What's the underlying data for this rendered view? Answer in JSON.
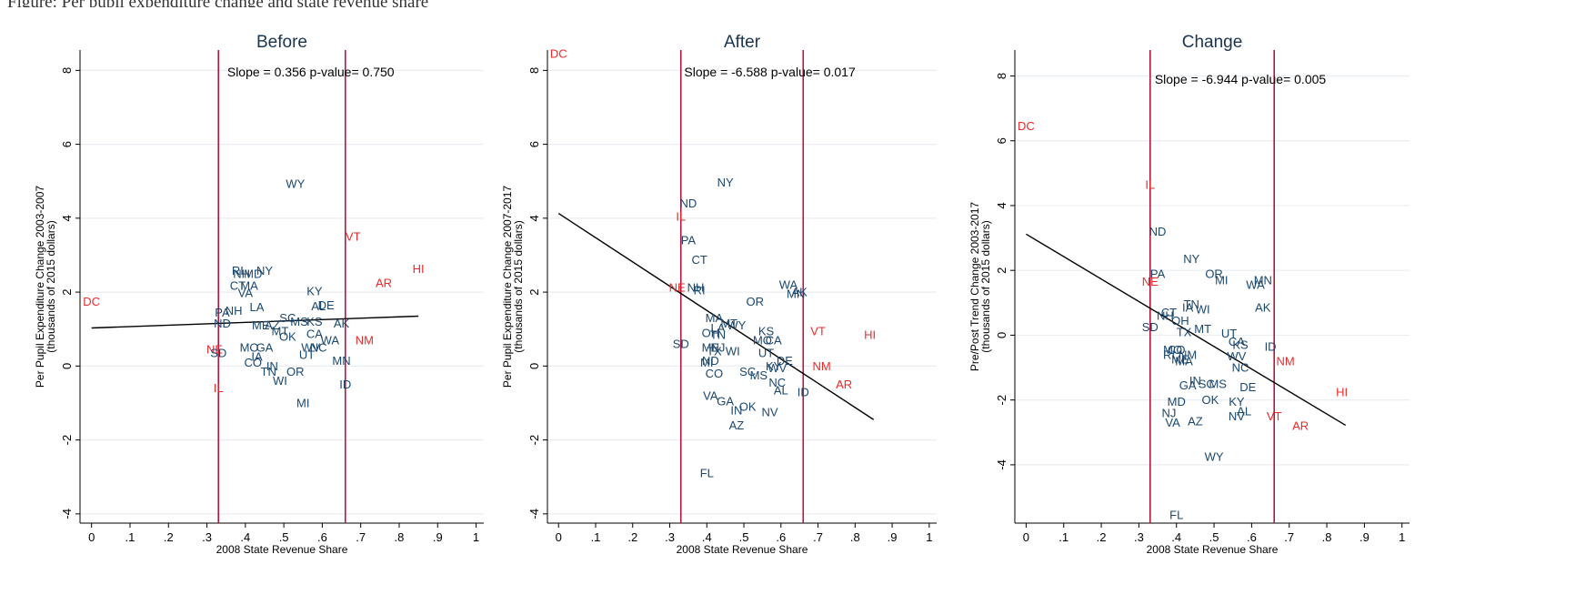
{
  "caption_fragment": "Figure: Per pupil expenditure change and state revenue share",
  "colors": {
    "background": "#ffffff",
    "plot_bg": "#ffffff",
    "grid": "#e9eef2",
    "state_label": "#1a476f",
    "highlight_label": "#ea2a2a",
    "threshold_line": "#b2183f",
    "fit_line": "#000000"
  },
  "chart_data": [
    {
      "type": "scatter",
      "title": "Before",
      "xlabel": "2008 State Revenue Share",
      "ylabel": [
        "Per Pupil Expenditure Change 2003-2007",
        "(thousands of 2015 dollars)"
      ],
      "xlim": [
        -0.03,
        1.02
      ],
      "ylim": [
        -4.25,
        8.55
      ],
      "xticks": [
        0,
        0.1,
        0.2,
        0.3,
        0.4,
        0.5,
        0.6,
        0.7,
        0.8,
        0.9,
        1
      ],
      "xtick_labels": [
        "0",
        ".1",
        ".2",
        ".3",
        ".4",
        ".5",
        ".6",
        ".7",
        ".8",
        ".9",
        "1"
      ],
      "yticks": [
        -4,
        -2,
        0,
        2,
        4,
        6,
        8
      ],
      "ytick_labels": [
        "-4",
        "-2",
        "0",
        "2",
        "4",
        "6",
        "8"
      ],
      "grid": true,
      "vlines": [
        0.33,
        0.66
      ],
      "fit_line": {
        "x": [
          0,
          0.85
        ],
        "y": [
          1.03,
          1.35
        ]
      },
      "annotation": {
        "text": "Slope = 0.356  p-value= 0.750",
        "x": 0.57,
        "y": 7.96
      },
      "points": [
        {
          "label": "DC",
          "x": 0.0,
          "y": 1.75,
          "highlight": true
        },
        {
          "label": "WY",
          "x": 0.53,
          "y": 4.93
        },
        {
          "label": "VT",
          "x": 0.68,
          "y": 3.5,
          "highlight": true
        },
        {
          "label": "HI",
          "x": 0.85,
          "y": 2.63,
          "highlight": true
        },
        {
          "label": "AR",
          "x": 0.76,
          "y": 2.25,
          "highlight": true
        },
        {
          "label": "RI",
          "x": 0.38,
          "y": 2.58
        },
        {
          "label": "NY",
          "x": 0.45,
          "y": 2.58
        },
        {
          "label": "NH",
          "x": 0.39,
          "y": 2.5
        },
        {
          "label": "MD",
          "x": 0.42,
          "y": 2.5
        },
        {
          "label": "CT",
          "x": 0.38,
          "y": 2.18
        },
        {
          "label": "MA",
          "x": 0.41,
          "y": 2.18
        },
        {
          "label": "VA",
          "x": 0.4,
          "y": 1.98
        },
        {
          "label": "KY",
          "x": 0.58,
          "y": 2.03
        },
        {
          "label": "LA",
          "x": 0.43,
          "y": 1.6
        },
        {
          "label": "PA",
          "x": 0.34,
          "y": 1.45
        },
        {
          "label": "NH",
          "x": 0.37,
          "y": 1.5
        },
        {
          "label": "ND",
          "x": 0.34,
          "y": 1.15
        },
        {
          "label": "SC",
          "x": 0.51,
          "y": 1.3
        },
        {
          "label": "AL",
          "x": 0.59,
          "y": 1.62
        },
        {
          "label": "DE",
          "x": 0.61,
          "y": 1.65
        },
        {
          "label": "ME",
          "x": 0.44,
          "y": 1.1
        },
        {
          "label": "AZ",
          "x": 0.47,
          "y": 1.1
        },
        {
          "label": "MS",
          "x": 0.54,
          "y": 1.2
        },
        {
          "label": "KS",
          "x": 0.58,
          "y": 1.2
        },
        {
          "label": "AK",
          "x": 0.65,
          "y": 1.15
        },
        {
          "label": "MT",
          "x": 0.49,
          "y": 0.95
        },
        {
          "label": "CA",
          "x": 0.58,
          "y": 0.87
        },
        {
          "label": "WA",
          "x": 0.62,
          "y": 0.7
        },
        {
          "label": "OK",
          "x": 0.51,
          "y": 0.8
        },
        {
          "label": "NM",
          "x": 0.71,
          "y": 0.7,
          "highlight": true
        },
        {
          "label": "MO",
          "x": 0.41,
          "y": 0.5
        },
        {
          "label": "GA",
          "x": 0.45,
          "y": 0.5
        },
        {
          "label": "WV",
          "x": 0.57,
          "y": 0.5
        },
        {
          "label": "NC",
          "x": 0.59,
          "y": 0.5
        },
        {
          "label": "NE",
          "x": 0.32,
          "y": 0.45,
          "highlight": true
        },
        {
          "label": "SD",
          "x": 0.33,
          "y": 0.35
        },
        {
          "label": "UT",
          "x": 0.56,
          "y": 0.3
        },
        {
          "label": "IA",
          "x": 0.43,
          "y": 0.25
        },
        {
          "label": "CO",
          "x": 0.42,
          "y": 0.1
        },
        {
          "label": "IN",
          "x": 0.47,
          "y": 0.0
        },
        {
          "label": "MN",
          "x": 0.65,
          "y": 0.15
        },
        {
          "label": "TN",
          "x": 0.46,
          "y": -0.15
        },
        {
          "label": "OR",
          "x": 0.53,
          "y": -0.15
        },
        {
          "label": "WI",
          "x": 0.49,
          "y": -0.4
        },
        {
          "label": "IL",
          "x": 0.33,
          "y": -0.6,
          "highlight": true
        },
        {
          "label": "ID",
          "x": 0.66,
          "y": -0.5
        },
        {
          "label": "MI",
          "x": 0.55,
          "y": -1.0
        }
      ]
    },
    {
      "type": "scatter",
      "title": "After",
      "xlabel": "2008 State Revenue Share",
      "ylabel": [
        "Per Pupil Expenditure Change 2007-2017",
        "(thousands of 2015 dollars)"
      ],
      "xlim": [
        -0.03,
        1.02
      ],
      "ylim": [
        -4.25,
        8.55
      ],
      "xticks": [
        0,
        0.1,
        0.2,
        0.3,
        0.4,
        0.5,
        0.6,
        0.7,
        0.8,
        0.9,
        1
      ],
      "xtick_labels": [
        "0",
        ".1",
        ".2",
        ".3",
        ".4",
        ".5",
        ".6",
        ".7",
        ".8",
        ".9",
        "1"
      ],
      "yticks": [
        -4,
        -2,
        0,
        2,
        4,
        6,
        8
      ],
      "ytick_labels": [
        "-4",
        "-2",
        "0",
        "2",
        "4",
        "6",
        "8"
      ],
      "grid": true,
      "vlines": [
        0.33,
        0.66
      ],
      "fit_line": {
        "x": [
          0,
          0.85
        ],
        "y": [
          4.13,
          -1.45
        ]
      },
      "annotation": {
        "text": "Slope = -6.588  p-value= 0.017",
        "x": 0.57,
        "y": 7.96
      },
      "points": [
        {
          "label": "DC",
          "x": 0.0,
          "y": 8.45,
          "highlight": true
        },
        {
          "label": "NY",
          "x": 0.45,
          "y": 4.97
        },
        {
          "label": "ND",
          "x": 0.35,
          "y": 4.4
        },
        {
          "label": "IL",
          "x": 0.33,
          "y": 4.05,
          "highlight": true
        },
        {
          "label": "PA",
          "x": 0.35,
          "y": 3.4
        },
        {
          "label": "CT",
          "x": 0.38,
          "y": 2.88
        },
        {
          "label": "NE",
          "x": 0.32,
          "y": 2.12,
          "highlight": true
        },
        {
          "label": "NH",
          "x": 0.37,
          "y": 2.12
        },
        {
          "label": "RI",
          "x": 0.38,
          "y": 2.05
        },
        {
          "label": "WA",
          "x": 0.62,
          "y": 2.2
        },
        {
          "label": "AK",
          "x": 0.65,
          "y": 2.0
        },
        {
          "label": "MN",
          "x": 0.64,
          "y": 1.95
        },
        {
          "label": "OR",
          "x": 0.53,
          "y": 1.75
        },
        {
          "label": "MA",
          "x": 0.42,
          "y": 1.3
        },
        {
          "label": "MT",
          "x": 0.46,
          "y": 1.15
        },
        {
          "label": "WY",
          "x": 0.48,
          "y": 1.1
        },
        {
          "label": "LA",
          "x": 0.43,
          "y": 1.03
        },
        {
          "label": "OH",
          "x": 0.41,
          "y": 0.9
        },
        {
          "label": "TN",
          "x": 0.43,
          "y": 0.85
        },
        {
          "label": "KS",
          "x": 0.56,
          "y": 0.95
        },
        {
          "label": "MO",
          "x": 0.55,
          "y": 0.7
        },
        {
          "label": "CA",
          "x": 0.58,
          "y": 0.7
        },
        {
          "label": "VT",
          "x": 0.7,
          "y": 0.95,
          "highlight": true
        },
        {
          "label": "HI",
          "x": 0.84,
          "y": 0.85,
          "highlight": true
        },
        {
          "label": "SD",
          "x": 0.33,
          "y": 0.6
        },
        {
          "label": "ME",
          "x": 0.41,
          "y": 0.5
        },
        {
          "label": "NJ",
          "x": 0.43,
          "y": 0.5
        },
        {
          "label": "TX",
          "x": 0.42,
          "y": 0.4
        },
        {
          "label": "WI",
          "x": 0.47,
          "y": 0.4
        },
        {
          "label": "UT",
          "x": 0.56,
          "y": 0.35
        },
        {
          "label": "DE",
          "x": 0.61,
          "y": 0.15
        },
        {
          "label": "MI",
          "x": 0.4,
          "y": 0.1
        },
        {
          "label": "ND",
          "x": 0.41,
          "y": 0.15
        },
        {
          "label": "KY",
          "x": 0.58,
          "y": 0.0
        },
        {
          "label": "WV",
          "x": 0.59,
          "y": -0.05
        },
        {
          "label": "NM",
          "x": 0.71,
          "y": 0.0,
          "highlight": true
        },
        {
          "label": "SC",
          "x": 0.51,
          "y": -0.15
        },
        {
          "label": "MS",
          "x": 0.54,
          "y": -0.25
        },
        {
          "label": "CO",
          "x": 0.42,
          "y": -0.2
        },
        {
          "label": "NC",
          "x": 0.59,
          "y": -0.45
        },
        {
          "label": "AR",
          "x": 0.77,
          "y": -0.5,
          "highlight": true
        },
        {
          "label": "AL",
          "x": 0.6,
          "y": -0.65
        },
        {
          "label": "ID",
          "x": 0.66,
          "y": -0.7
        },
        {
          "label": "VA",
          "x": 0.41,
          "y": -0.8
        },
        {
          "label": "GA",
          "x": 0.45,
          "y": -0.95
        },
        {
          "label": "OK",
          "x": 0.51,
          "y": -1.1
        },
        {
          "label": "IN",
          "x": 0.48,
          "y": -1.2
        },
        {
          "label": "NV",
          "x": 0.57,
          "y": -1.25
        },
        {
          "label": "AZ",
          "x": 0.48,
          "y": -1.6
        },
        {
          "label": "FL",
          "x": 0.4,
          "y": -2.9
        }
      ]
    },
    {
      "type": "scatter",
      "title": "Change",
      "xlabel": "2008 State Revenue Share",
      "ylabel": [
        "Pre/Post Trend Change 2003-2017",
        "(thousands of 2015 dollars)"
      ],
      "xlim": [
        -0.03,
        1.02
      ],
      "ylim": [
        -5.8,
        8.8
      ],
      "xticks": [
        0,
        0.1,
        0.2,
        0.3,
        0.4,
        0.5,
        0.6,
        0.7,
        0.8,
        0.9,
        1
      ],
      "xtick_labels": [
        "0",
        ".1",
        ".2",
        ".3",
        ".4",
        ".5",
        ".6",
        ".7",
        ".8",
        ".9",
        "1"
      ],
      "yticks": [
        -4,
        -2,
        0,
        2,
        4,
        6,
        8
      ],
      "ytick_labels": [
        "-4",
        "-2",
        "0",
        "2",
        "4",
        "6",
        "8"
      ],
      "grid": true,
      "vlines": [
        0.33,
        0.66
      ],
      "fit_line": {
        "x": [
          0,
          0.85
        ],
        "y": [
          3.12,
          -2.78
        ]
      },
      "annotation": {
        "text": "Slope = -6.944  p-value= 0.005",
        "x": 0.57,
        "y": 7.9
      },
      "points": [
        {
          "label": "DC",
          "x": 0.0,
          "y": 6.45,
          "highlight": true
        },
        {
          "label": "IL",
          "x": 0.33,
          "y": 4.65,
          "highlight": true
        },
        {
          "label": "ND",
          "x": 0.35,
          "y": 3.2
        },
        {
          "label": "NY",
          "x": 0.44,
          "y": 2.35
        },
        {
          "label": "OR",
          "x": 0.5,
          "y": 1.9
        },
        {
          "label": "MI",
          "x": 0.52,
          "y": 1.7
        },
        {
          "label": "MN",
          "x": 0.63,
          "y": 1.7
        },
        {
          "label": "WA",
          "x": 0.61,
          "y": 1.55
        },
        {
          "label": "PA",
          "x": 0.35,
          "y": 1.9
        },
        {
          "label": "NE",
          "x": 0.33,
          "y": 1.65,
          "highlight": true
        },
        {
          "label": "TN",
          "x": 0.44,
          "y": 0.95
        },
        {
          "label": "IA",
          "x": 0.43,
          "y": 0.85
        },
        {
          "label": "WI",
          "x": 0.47,
          "y": 0.8
        },
        {
          "label": "AK",
          "x": 0.63,
          "y": 0.85
        },
        {
          "label": "CT",
          "x": 0.38,
          "y": 0.7
        },
        {
          "label": "NH",
          "x": 0.37,
          "y": 0.6
        },
        {
          "label": "OH",
          "x": 0.41,
          "y": 0.45
        },
        {
          "label": "MT",
          "x": 0.47,
          "y": 0.2
        },
        {
          "label": "TX",
          "x": 0.42,
          "y": 0.1
        },
        {
          "label": "SD",
          "x": 0.33,
          "y": 0.25
        },
        {
          "label": "UT",
          "x": 0.54,
          "y": 0.05
        },
        {
          "label": "CA",
          "x": 0.56,
          "y": -0.2
        },
        {
          "label": "KS",
          "x": 0.57,
          "y": -0.3
        },
        {
          "label": "ID",
          "x": 0.65,
          "y": -0.35
        },
        {
          "label": "MO",
          "x": 0.39,
          "y": -0.45
        },
        {
          "label": "CO",
          "x": 0.4,
          "y": -0.45
        },
        {
          "label": "RI",
          "x": 0.38,
          "y": -0.6
        },
        {
          "label": "NM",
          "x": 0.43,
          "y": -0.6
        },
        {
          "label": "ME",
          "x": 0.41,
          "y": -0.75
        },
        {
          "label": "MA",
          "x": 0.42,
          "y": -0.8
        },
        {
          "label": "WV",
          "x": 0.56,
          "y": -0.65
        },
        {
          "label": "NC",
          "x": 0.57,
          "y": -1.0
        },
        {
          "label": "NM",
          "x": 0.69,
          "y": -0.8,
          "highlight": true
        },
        {
          "label": "IN",
          "x": 0.45,
          "y": -1.4
        },
        {
          "label": "SC",
          "x": 0.48,
          "y": -1.5
        },
        {
          "label": "MS",
          "x": 0.51,
          "y": -1.5
        },
        {
          "label": "GA",
          "x": 0.43,
          "y": -1.55
        },
        {
          "label": "DE",
          "x": 0.59,
          "y": -1.6
        },
        {
          "label": "HI",
          "x": 0.84,
          "y": -1.75,
          "highlight": true
        },
        {
          "label": "OK",
          "x": 0.49,
          "y": -2.0
        },
        {
          "label": "MD",
          "x": 0.4,
          "y": -2.05
        },
        {
          "label": "KY",
          "x": 0.56,
          "y": -2.05
        },
        {
          "label": "AL",
          "x": 0.58,
          "y": -2.35
        },
        {
          "label": "NJ",
          "x": 0.38,
          "y": -2.4
        },
        {
          "label": "NV",
          "x": 0.56,
          "y": -2.5
        },
        {
          "label": "VT",
          "x": 0.66,
          "y": -2.5,
          "highlight": true
        },
        {
          "label": "VA",
          "x": 0.39,
          "y": -2.7
        },
        {
          "label": "AZ",
          "x": 0.45,
          "y": -2.65
        },
        {
          "label": "AR",
          "x": 0.73,
          "y": -2.8,
          "highlight": true
        },
        {
          "label": "WY",
          "x": 0.5,
          "y": -3.75
        },
        {
          "label": "FL",
          "x": 0.4,
          "y": -5.55
        }
      ]
    }
  ]
}
